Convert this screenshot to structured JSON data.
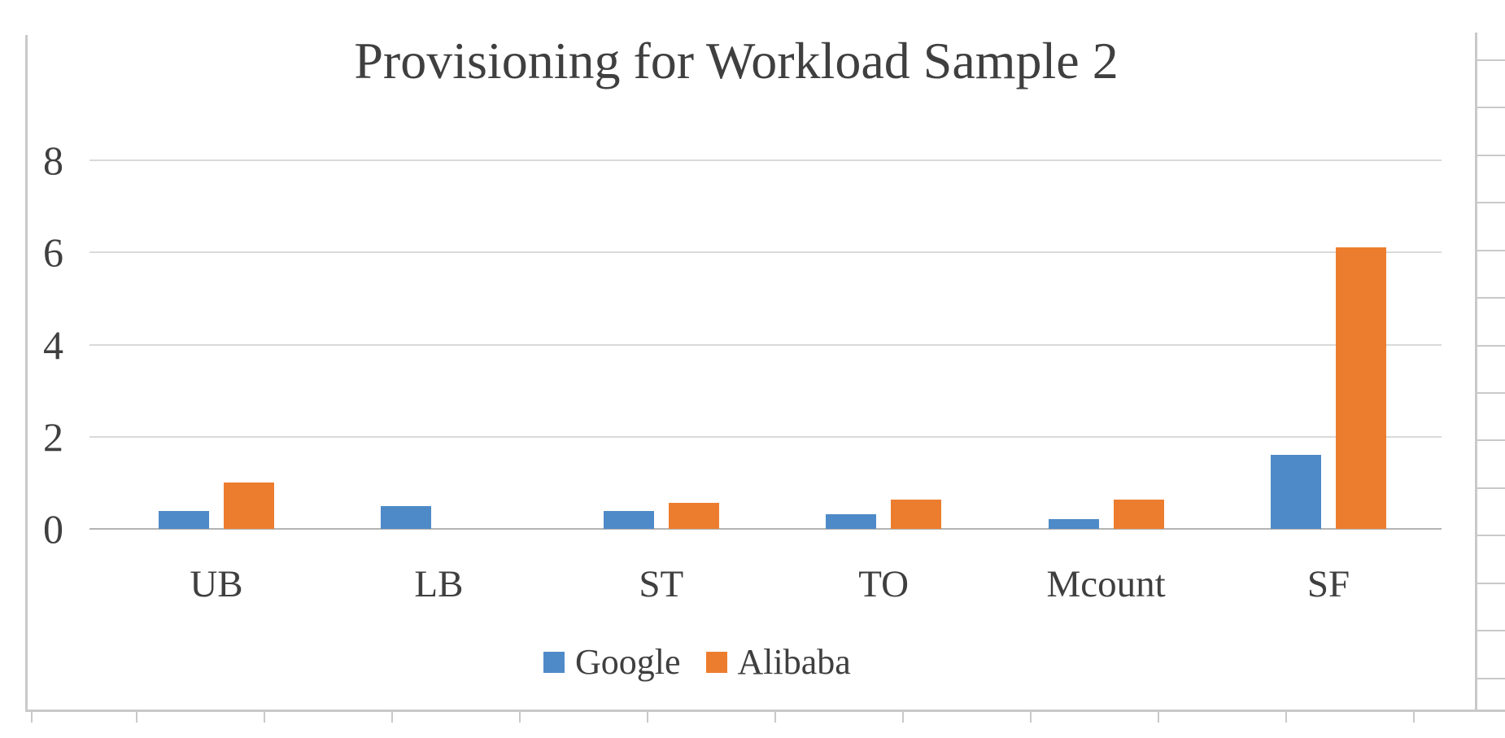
{
  "title": "Provisioning for Workload Sample 2",
  "chart_data": {
    "type": "bar",
    "title": "Provisioning for Workload Sample 2",
    "categories": [
      "UB",
      "LB",
      "ST",
      "TO",
      "Mcount",
      "SF"
    ],
    "series": [
      {
        "name": "Google",
        "color": "#4e8ac8",
        "values": [
          0.39,
          0.5,
          0.38,
          0.31,
          0.22,
          1.6
        ]
      },
      {
        "name": "Alibaba",
        "color": "#ed7d2e",
        "values": [
          1.0,
          0.0,
          0.57,
          0.64,
          0.63,
          6.11
        ]
      }
    ],
    "xlabel": "",
    "ylabel": "",
    "ylim": [
      0,
      8
    ],
    "yticks": [
      0,
      2,
      4,
      6,
      8
    ],
    "grid": "horizontal",
    "legend_position": "bottom"
  },
  "colors": {
    "google_blue": "#4e8ac8",
    "alibaba_orange": "#ed7d2e",
    "gridline": "#d9d9d9",
    "zero_line": "#b3b3b3",
    "frame": "#c9c9c9",
    "text": "#3f3f3f",
    "background": "#ffffff"
  }
}
